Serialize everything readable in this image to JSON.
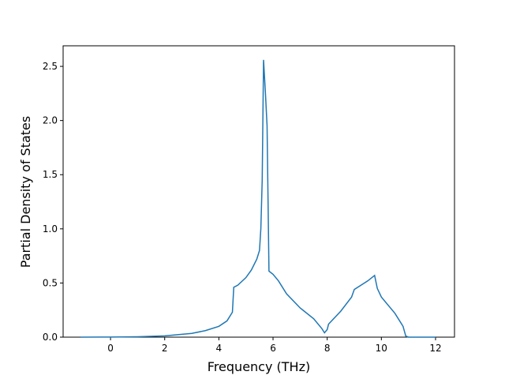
{
  "chart_data": {
    "type": "line",
    "x_label": "Frequency (THz)",
    "y_label": "Partial Density of States",
    "x": [
      -1.1,
      0,
      1,
      2,
      3,
      3.5,
      4,
      4.3,
      4.5,
      4.55,
      4.7,
      5,
      5.2,
      5.4,
      5.5,
      5.55,
      5.6,
      5.65,
      5.72,
      5.78,
      5.85,
      6,
      6.2,
      6.5,
      7,
      7.5,
      7.8,
      7.9,
      8,
      8.05,
      8.5,
      8.9,
      9,
      9.5,
      9.75,
      9.85,
      10,
      10.5,
      10.8,
      10.9,
      11,
      12
    ],
    "series": [
      {
        "color": "#1f77b4",
        "values": [
          0,
          0.001,
          0.004,
          0.012,
          0.035,
          0.06,
          0.1,
          0.15,
          0.23,
          0.46,
          0.48,
          0.55,
          0.62,
          0.72,
          0.8,
          1.0,
          1.45,
          2.56,
          2.25,
          1.95,
          0.61,
          0.58,
          0.52,
          0.4,
          0.27,
          0.17,
          0.08,
          0.04,
          0.07,
          0.12,
          0.24,
          0.37,
          0.44,
          0.52,
          0.57,
          0.45,
          0.37,
          0.22,
          0.1,
          0.01,
          0,
          0
        ]
      }
    ],
    "xlim": [
      -1.75,
      12.7
    ],
    "ylim": [
      0,
      2.69
    ],
    "xticks": [
      0,
      2,
      4,
      6,
      8,
      10,
      12
    ],
    "yticks": [
      {
        "value": 0,
        "label": "0.0"
      },
      {
        "value": 0.5,
        "label": "0.5"
      },
      {
        "value": 1,
        "label": "1.0"
      },
      {
        "value": 1.5,
        "label": "1.5"
      },
      {
        "value": 2,
        "label": "2.0"
      },
      {
        "value": 2.5,
        "label": "2.5"
      }
    ]
  }
}
